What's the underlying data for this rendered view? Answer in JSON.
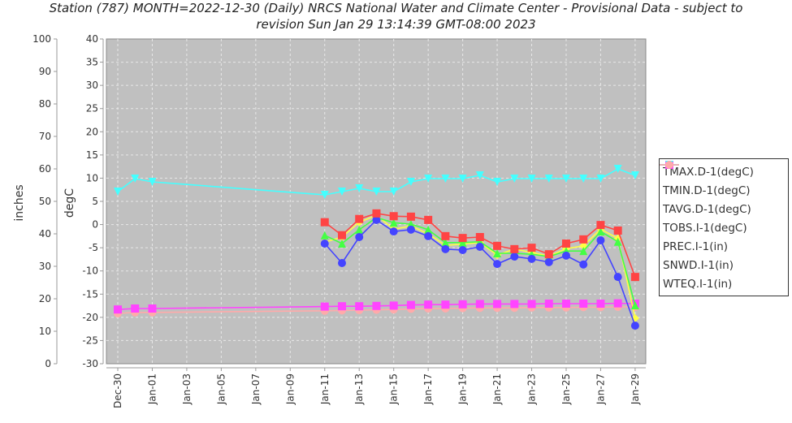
{
  "title_line1": "Station (787) MONTH=2022-12-30 (Daily) NRCS National Water and Climate Center - Provisional Data - subject to",
  "title_line2": "revision Sun Jan 29 13:14:39 GMT-08:00 2023",
  "chart_data": {
    "type": "line",
    "title": "Station (787) MONTH=2022-12-30 (Daily) NRCS National Water and Climate Center - Provisional Data - subject to revision Sun Jan 29 13:14:39 GMT-08:00 2023",
    "xlabel": "",
    "ylabel_left": "inches",
    "ylabel_right": "degC",
    "ylim_inches": [
      0,
      100
    ],
    "ylim_degC": [
      -30,
      40
    ],
    "inches_ticks": [
      0,
      10,
      20,
      30,
      40,
      50,
      60,
      70,
      80,
      90,
      100
    ],
    "degC_ticks": [
      -30,
      -25,
      -20,
      -15,
      -10,
      -5,
      0,
      5,
      10,
      15,
      20,
      25,
      30,
      35,
      40
    ],
    "x_tick_labels": [
      "Dec-30",
      "Jan-01",
      "Jan-03",
      "Jan-05",
      "Jan-07",
      "Jan-09",
      "Jan-11",
      "Jan-13",
      "Jan-15",
      "Jan-17",
      "Jan-19",
      "Jan-21",
      "Jan-23",
      "Jan-25",
      "Jan-27",
      "Jan-29"
    ],
    "grid": true,
    "legend_position": "right",
    "x": [
      "Dec-30",
      "Dec-31",
      "Jan-01",
      "Jan-02",
      "Jan-03",
      "Jan-04",
      "Jan-05",
      "Jan-06",
      "Jan-07",
      "Jan-08",
      "Jan-09",
      "Jan-10",
      "Jan-11",
      "Jan-12",
      "Jan-13",
      "Jan-14",
      "Jan-15",
      "Jan-16",
      "Jan-17",
      "Jan-18",
      "Jan-19",
      "Jan-20",
      "Jan-21",
      "Jan-22",
      "Jan-23",
      "Jan-24",
      "Jan-25",
      "Jan-26",
      "Jan-27",
      "Jan-28",
      "Jan-29"
    ],
    "series": [
      {
        "name": "TMAX.D-1(degC)",
        "axis": "degC",
        "color": "#ff4444",
        "marker": "square",
        "values": [
          null,
          null,
          null,
          null,
          null,
          null,
          null,
          null,
          null,
          null,
          null,
          null,
          0.5,
          -2.3,
          1.2,
          2.4,
          1.8,
          1.7,
          1.0,
          -2.5,
          -2.9,
          -2.7,
          -4.6,
          -5.3,
          -5.0,
          -6.4,
          -4.1,
          -3.2,
          -0.1,
          -1.3,
          -11.3
        ]
      },
      {
        "name": "TMIN.D-1(degC)",
        "axis": "degC",
        "color": "#4444ff",
        "marker": "circle",
        "values": [
          null,
          null,
          null,
          null,
          null,
          null,
          null,
          null,
          null,
          null,
          null,
          null,
          -4.1,
          -8.3,
          -2.7,
          1.0,
          -1.5,
          -1.1,
          -2.5,
          -5.3,
          -5.5,
          -4.8,
          -8.5,
          -6.9,
          -7.4,
          -8.1,
          -6.7,
          -8.6,
          -3.4,
          -11.3,
          -21.8
        ]
      },
      {
        "name": "TAVG.D-1(degC)",
        "axis": "degC",
        "color": "#44ff44",
        "marker": "triangle-up",
        "values": [
          null,
          null,
          null,
          null,
          null,
          null,
          null,
          null,
          null,
          null,
          null,
          null,
          -2.3,
          -4.1,
          -1.1,
          1.5,
          0.4,
          0.1,
          -1.1,
          -3.9,
          -3.9,
          -3.7,
          -6.2,
          -6.2,
          -6.4,
          -6.9,
          -5.7,
          -5.7,
          -1.5,
          -3.7,
          -17.4
        ]
      },
      {
        "name": "TOBS.I-1(degC)",
        "axis": "degC",
        "color": "#ffff44",
        "marker": "diamond",
        "values": [
          null,
          null,
          null,
          null,
          null,
          null,
          null,
          null,
          null,
          null,
          null,
          null,
          -3.8,
          -2.7,
          0.5,
          2.0,
          -1.0,
          -0.3,
          -2.0,
          -4.5,
          -4.2,
          -3.9,
          -6.6,
          -5.3,
          -6.0,
          -6.8,
          -5.2,
          -4.6,
          -1.0,
          -3.0,
          -20.2
        ]
      },
      {
        "name": "PREC.I-1(in)",
        "axis": "inches",
        "color": "#ff44ff",
        "marker": "square",
        "values": [
          16.7,
          17.0,
          17.0,
          null,
          null,
          null,
          null,
          null,
          null,
          null,
          null,
          null,
          17.6,
          17.7,
          17.7,
          17.8,
          17.9,
          18.1,
          18.2,
          18.2,
          18.3,
          18.4,
          18.4,
          18.4,
          18.4,
          18.5,
          18.5,
          18.5,
          18.5,
          18.6,
          18.5
        ]
      },
      {
        "name": "SNWD.I-1(in)",
        "axis": "inches",
        "color": "#44ffff",
        "marker": "triangle-down",
        "values": [
          53,
          57,
          56,
          null,
          null,
          null,
          null,
          null,
          null,
          null,
          null,
          null,
          52,
          53,
          54,
          53,
          53,
          56,
          57,
          57,
          57,
          58,
          56,
          57,
          57,
          57,
          57,
          57,
          57,
          60,
          58
        ]
      },
      {
        "name": "WTEQ.I-1(in)",
        "axis": "inches",
        "color": "#ffaaaa",
        "marker": "circle",
        "values": [
          15.5,
          15.8,
          15.8,
          null,
          null,
          null,
          null,
          null,
          null,
          null,
          null,
          null,
          16.3,
          16.4,
          16.5,
          16.6,
          16.7,
          16.9,
          17.0,
          17.0,
          17.1,
          17.2,
          17.2,
          17.2,
          17.3,
          17.3,
          17.3,
          17.4,
          17.4,
          17.5,
          17.5
        ]
      }
    ]
  },
  "legend": [
    {
      "label": "TMAX.D-1(degC)",
      "color": "#ff4444",
      "marker": "square"
    },
    {
      "label": "TMIN.D-1(degC)",
      "color": "#4444ff",
      "marker": "circle"
    },
    {
      "label": "TAVG.D-1(degC)",
      "color": "#44ff44",
      "marker": "triangle-up"
    },
    {
      "label": "TOBS.I-1(degC)",
      "color": "#ffff44",
      "marker": "diamond"
    },
    {
      "label": "PREC.I-1(in)",
      "color": "#ff44ff",
      "marker": "square"
    },
    {
      "label": "SNWD.I-1(in)",
      "color": "#44ffff",
      "marker": "triangle-down"
    },
    {
      "label": "WTEQ.I-1(in)",
      "color": "#ffaaaa",
      "marker": "circle"
    }
  ],
  "colors": {
    "plot_background": "#c0c0c0",
    "gridline": "#e8e8e8",
    "axis": "#888888"
  }
}
